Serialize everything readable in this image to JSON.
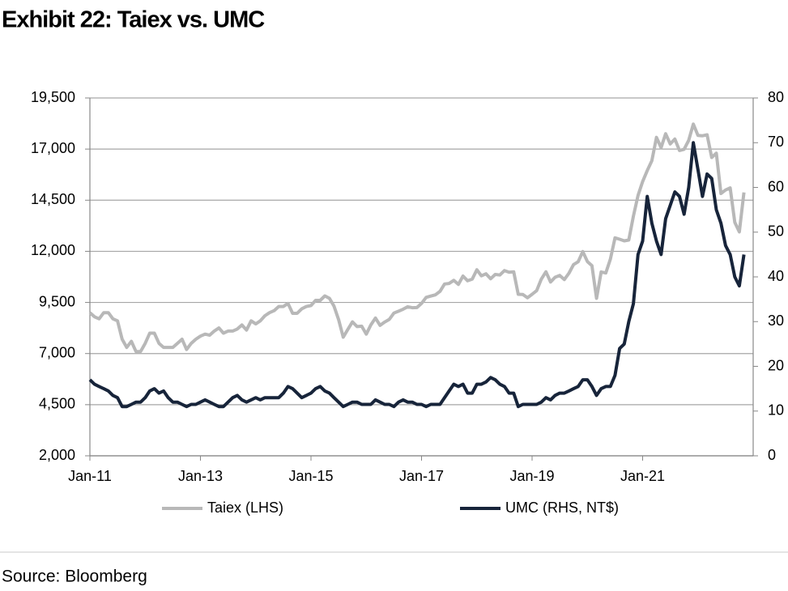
{
  "chart_data": {
    "type": "line",
    "title": "Exhibit 22: Taiex vs. UMC",
    "source": "Source: Bloomberg",
    "x": [
      "Jan-11",
      "Feb-11",
      "Mar-11",
      "Apr-11",
      "May-11",
      "Jun-11",
      "Jul-11",
      "Aug-11",
      "Sep-11",
      "Oct-11",
      "Nov-11",
      "Dec-11",
      "Jan-12",
      "Feb-12",
      "Mar-12",
      "Apr-12",
      "May-12",
      "Jun-12",
      "Jul-12",
      "Aug-12",
      "Sep-12",
      "Oct-12",
      "Nov-12",
      "Dec-12",
      "Jan-13",
      "Feb-13",
      "Mar-13",
      "Apr-13",
      "May-13",
      "Jun-13",
      "Jul-13",
      "Aug-13",
      "Sep-13",
      "Oct-13",
      "Nov-13",
      "Dec-13",
      "Jan-14",
      "Feb-14",
      "Mar-14",
      "Apr-14",
      "May-14",
      "Jun-14",
      "Jul-14",
      "Aug-14",
      "Sep-14",
      "Oct-14",
      "Nov-14",
      "Dec-14",
      "Jan-15",
      "Feb-15",
      "Mar-15",
      "Apr-15",
      "May-15",
      "Jun-15",
      "Jul-15",
      "Aug-15",
      "Sep-15",
      "Oct-15",
      "Nov-15",
      "Dec-15",
      "Jan-16",
      "Feb-16",
      "Mar-16",
      "Apr-16",
      "May-16",
      "Jun-16",
      "Jul-16",
      "Aug-16",
      "Sep-16",
      "Oct-16",
      "Nov-16",
      "Dec-16",
      "Jan-17",
      "Feb-17",
      "Mar-17",
      "Apr-17",
      "May-17",
      "Jun-17",
      "Jul-17",
      "Aug-17",
      "Sep-17",
      "Oct-17",
      "Nov-17",
      "Dec-17",
      "Jan-18",
      "Feb-18",
      "Mar-18",
      "Apr-18",
      "May-18",
      "Jun-18",
      "Jul-18",
      "Aug-18",
      "Sep-18",
      "Oct-18",
      "Nov-18",
      "Dec-18",
      "Jan-19",
      "Feb-19",
      "Mar-19",
      "Apr-19",
      "May-19",
      "Jun-19",
      "Jul-19",
      "Aug-19",
      "Sep-19",
      "Oct-19",
      "Nov-19",
      "Dec-19",
      "Jan-20",
      "Feb-20",
      "Mar-20",
      "Apr-20",
      "May-20",
      "Jun-20",
      "Jul-20",
      "Aug-20",
      "Sep-20",
      "Oct-20",
      "Nov-20",
      "Dec-20",
      "Jan-21",
      "Feb-21",
      "Mar-21",
      "Apr-21",
      "May-21",
      "Jun-21",
      "Jul-21",
      "Aug-21",
      "Sep-21",
      "Oct-21",
      "Nov-21",
      "Dec-21",
      "Jan-22",
      "Feb-22",
      "Mar-22",
      "Apr-22",
      "May-22",
      "Jun-22",
      "Jul-22",
      "Aug-22",
      "Sep-22",
      "Oct-22",
      "Nov-22"
    ],
    "xticks": [
      "Jan-11",
      "Jan-13",
      "Jan-15",
      "Jan-17",
      "Jan-19",
      "Jan-21"
    ],
    "ylim": [
      2000,
      19500
    ],
    "yticks": [
      {
        "value": 2000,
        "label": "2,000"
      },
      {
        "value": 4500,
        "label": "4,500"
      },
      {
        "value": 7000,
        "label": "7,000"
      },
      {
        "value": 9500,
        "label": "9,500"
      },
      {
        "value": 12000,
        "label": "12,000"
      },
      {
        "value": 14500,
        "label": "14,500"
      },
      {
        "value": 17000,
        "label": "17,000"
      },
      {
        "value": 19500,
        "label": "19,500"
      }
    ],
    "y2lim": [
      0,
      80
    ],
    "y2ticks": [
      0,
      10,
      20,
      30,
      40,
      50,
      60,
      70,
      80
    ],
    "grid": true,
    "series": [
      {
        "name": "Taiex (LHS)",
        "color": "#b8b8b8",
        "values": [
          9000,
          8800,
          8700,
          9000,
          9000,
          8700,
          8600,
          7700,
          7300,
          7600,
          7100,
          7100,
          7500,
          8000,
          8000,
          7500,
          7300,
          7300,
          7300,
          7500,
          7700,
          7200,
          7500,
          7700,
          7850,
          7950,
          7900,
          8100,
          8250,
          8000,
          8100,
          8100,
          8200,
          8400,
          8150,
          8600,
          8450,
          8600,
          8850,
          9000,
          9100,
          9300,
          9300,
          9450,
          8970,
          8970,
          9190,
          9300,
          9350,
          9600,
          9600,
          9820,
          9700,
          9320,
          8660,
          7800,
          8180,
          8550,
          8320,
          8340,
          7950,
          8400,
          8740,
          8380,
          8540,
          8670,
          8980,
          9070,
          9170,
          9290,
          9240,
          9250,
          9450,
          9750,
          9810,
          9870,
          10040,
          10400,
          10430,
          10580,
          10380,
          10790,
          10560,
          10640,
          11100,
          10800,
          10900,
          10660,
          10870,
          10840,
          11060,
          10980,
          11000,
          9900,
          9890,
          9730,
          9900,
          10080,
          10640,
          11000,
          10500,
          10730,
          10820,
          10620,
          10930,
          11350,
          11490,
          11990,
          11500,
          11300,
          9700,
          10990,
          10940,
          11620,
          12660,
          12590,
          12510,
          12550,
          13720,
          14730,
          15410,
          15950,
          16430,
          17570,
          17070,
          17750,
          17250,
          17490,
          16930,
          16990,
          17430,
          18220,
          17670,
          17650,
          17700,
          16590,
          16800,
          14830,
          15000,
          15100,
          13420,
          12950,
          14880
        ]
      },
      {
        "name": "UMC (RHS, NT$)",
        "color": "#17243a",
        "axis": "y2",
        "values": [
          17,
          16,
          15.5,
          15,
          14.5,
          13.5,
          13,
          11,
          11,
          11.5,
          12,
          12,
          13,
          14.5,
          15,
          14,
          14.5,
          13,
          12,
          12,
          11.5,
          11,
          11.5,
          11.5,
          12,
          12.5,
          12,
          11.5,
          11,
          11,
          12,
          13,
          13.5,
          12.5,
          12,
          12.5,
          13,
          12.5,
          13,
          13,
          13,
          13,
          14,
          15.5,
          15,
          14,
          13,
          13.5,
          14,
          15,
          15.5,
          14.5,
          14,
          13,
          12,
          11,
          11.5,
          12,
          12,
          11.5,
          11.5,
          11.5,
          12.5,
          12,
          11.5,
          11.5,
          11,
          12,
          12.5,
          12,
          12,
          11.5,
          11.5,
          11,
          11.5,
          11.5,
          11.5,
          13,
          14.5,
          16,
          15.5,
          16,
          14,
          14,
          16,
          16,
          16.5,
          17.5,
          17,
          16,
          15.5,
          14,
          14,
          11,
          11.5,
          11.5,
          11.5,
          11.5,
          12,
          13,
          12.5,
          13.5,
          14,
          14,
          14.5,
          15,
          15.5,
          17,
          17,
          15.5,
          13.5,
          15,
          15.5,
          15.5,
          18,
          24,
          25,
          30,
          34,
          45,
          48,
          58,
          52,
          48,
          45,
          53,
          56,
          59,
          58,
          54,
          60,
          70,
          64,
          58,
          63,
          62,
          55,
          52,
          47,
          45,
          40,
          38,
          45
        ]
      }
    ]
  }
}
